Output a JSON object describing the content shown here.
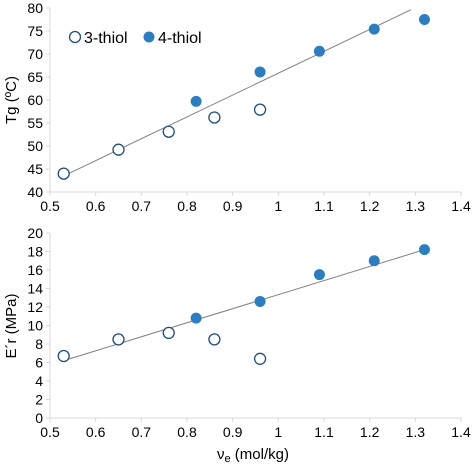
{
  "colors": {
    "filled": "#2e7ebf",
    "hollow_stroke": "#1f4e79",
    "trendline": "#808080",
    "axis": "#d9d9d9"
  },
  "legend": {
    "hollow_label": "3-thiol",
    "filled_label": "4-thiol"
  },
  "chart_data": [
    {
      "type": "scatter",
      "xlabel": "",
      "ylabel": "Tg (ºC)",
      "xlim": [
        0.5,
        1.4
      ],
      "ylim": [
        40,
        80
      ],
      "x_ticks": [
        "0.5",
        "0.6",
        "0.7",
        "0.8",
        "0.9",
        "1",
        "1.1",
        "1.2",
        "1.3",
        "1.4"
      ],
      "y_ticks": [
        "40",
        "45",
        "50",
        "55",
        "60",
        "65",
        "70",
        "75",
        "80"
      ],
      "legend_position": "top-left",
      "grid": false,
      "series": [
        {
          "name": "3-thiol",
          "style": "hollow",
          "x": [
            0.53,
            0.65,
            0.76,
            0.86,
            0.96
          ],
          "y": [
            44,
            49.2,
            53.1,
            56.2,
            57.9
          ]
        },
        {
          "name": "4-thiol",
          "style": "filled",
          "x": [
            0.82,
            0.96,
            1.09,
            1.21,
            1.32
          ],
          "y": [
            59.7,
            66.1,
            70.6,
            75.4,
            77.5
          ]
        }
      ],
      "trendline": {
        "x": [
          0.53,
          1.29
        ],
        "y": [
          43.5,
          79.6
        ]
      }
    },
    {
      "type": "scatter",
      "xlabel_base": "ν",
      "xlabel_sub": "e",
      "xlabel_rest": " (mol/kg)",
      "ylabel": "E´r (MPa)",
      "xlim": [
        0.5,
        1.4
      ],
      "ylim": [
        0,
        20
      ],
      "x_ticks": [
        "0.5",
        "0.6",
        "0.7",
        "0.8",
        "0.9",
        "1",
        "1.1",
        "1.2",
        "1.3",
        "1.4"
      ],
      "y_ticks": [
        "0",
        "2",
        "4",
        "6",
        "8",
        "10",
        "12",
        "14",
        "16",
        "18",
        "20"
      ],
      "grid": false,
      "series": [
        {
          "name": "3-thiol",
          "style": "hollow",
          "x": [
            0.53,
            0.65,
            0.76,
            0.86,
            0.96
          ],
          "y": [
            6.7,
            8.5,
            9.2,
            8.5,
            6.4
          ]
        },
        {
          "name": "4-thiol",
          "style": "filled",
          "x": [
            0.82,
            0.96,
            1.09,
            1.21,
            1.32
          ],
          "y": [
            10.8,
            12.6,
            15.5,
            17,
            18.2
          ]
        }
      ],
      "trendline": {
        "x": [
          0.53,
          1.32
        ],
        "y": [
          6.2,
          18.2
        ]
      }
    }
  ]
}
